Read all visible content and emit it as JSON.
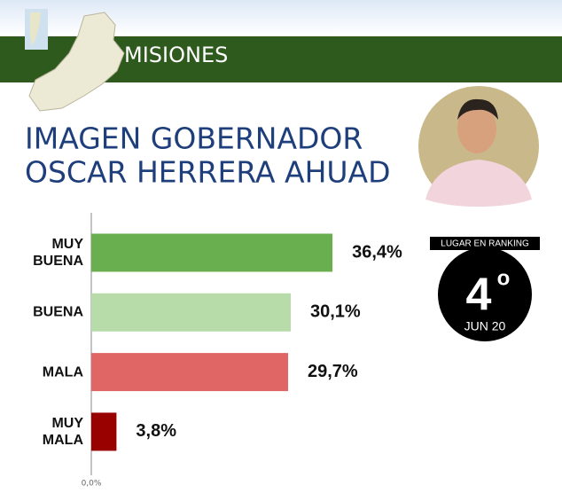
{
  "header": {
    "region": "MISIONES"
  },
  "title_lines": [
    "IMAGEN GOBERNADOR",
    "OSCAR HERRERA AHUAD"
  ],
  "ranking": {
    "label": "LUGAR EN RANKING",
    "rank": "4",
    "ordinal": "o",
    "date": "JUN 20"
  },
  "chart_data": {
    "type": "bar",
    "orientation": "horizontal",
    "categories": [
      "MUY BUENA",
      "BUENA",
      "MALA",
      "MUY MALA"
    ],
    "values": [
      36.4,
      30.1,
      29.7,
      3.8
    ],
    "value_labels": [
      "36,4%",
      "30,1%",
      "29,7%",
      "3,8%"
    ],
    "colors": [
      "#6aaf4f",
      "#b7dca9",
      "#e06666",
      "#990000"
    ],
    "xlim": [
      0,
      40
    ],
    "xticks": [
      {
        "value": 0,
        "label": "0,0%"
      }
    ]
  }
}
